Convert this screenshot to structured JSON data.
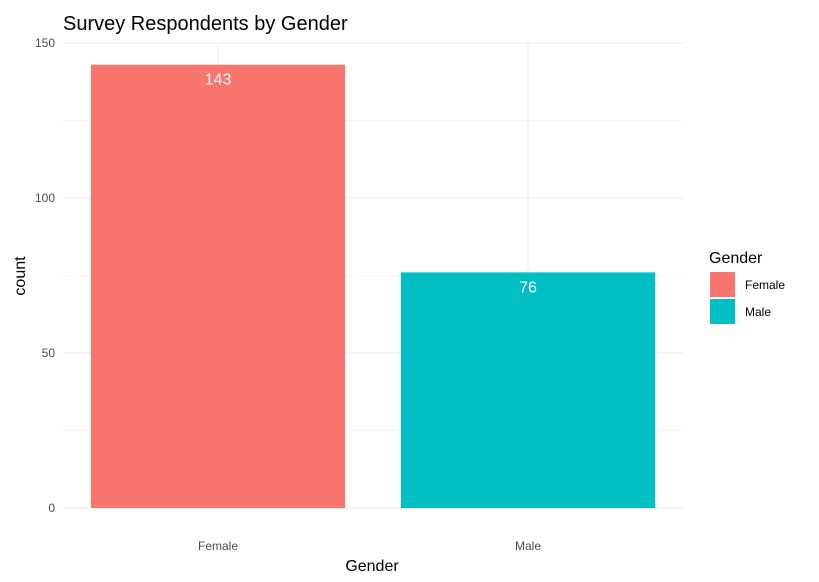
{
  "chart_data": {
    "type": "bar",
    "title": "Survey Respondents by Gender",
    "xlabel": "Gender",
    "ylabel": "count",
    "categories": [
      "Female",
      "Male"
    ],
    "values": [
      143,
      76
    ],
    "data_labels": [
      "143",
      "76"
    ],
    "ylim": [
      0,
      150
    ],
    "yticks": [
      0,
      50,
      100,
      150
    ],
    "ytick_labels": [
      "0",
      "50",
      "100",
      "150"
    ],
    "grid": true,
    "colors": [
      "#F8766D",
      "#00BFC4"
    ],
    "legend": {
      "title": "Gender",
      "position": "right",
      "entries": [
        "Female",
        "Male"
      ]
    }
  }
}
